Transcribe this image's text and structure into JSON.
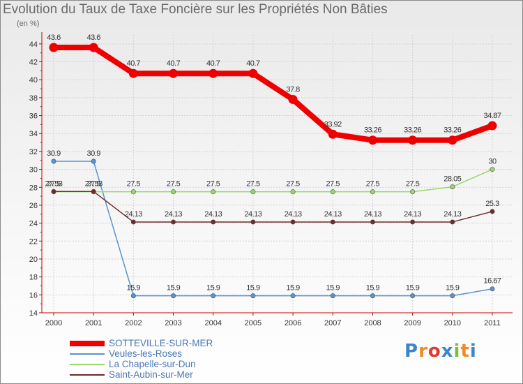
{
  "page": {
    "title": "Evolution du Taux de Taxe Foncière sur les Propriétés Non Bâties",
    "unit": "(en %)",
    "brand": [
      "P",
      "r",
      "o",
      "x",
      "i",
      "t",
      "i"
    ],
    "brand_colors": [
      "#3a86c8",
      "#f08a24",
      "#e23a2a",
      "#3a86c8",
      "#7bbf3a",
      "#f08a24",
      "#3a86c8"
    ]
  },
  "chart_data": {
    "type": "line",
    "title": "Evolution du Taux de Taxe Foncière sur les Propriétés Non Bâties",
    "ylabel": "(en %)",
    "xlabel": "",
    "ylim": [
      14,
      45
    ],
    "yticks": [
      14,
      16,
      18,
      20,
      22,
      24,
      26,
      28,
      30,
      32,
      34,
      36,
      38,
      40,
      42,
      44
    ],
    "x": [
      "2000",
      "2001",
      "2002",
      "2003",
      "2004",
      "2005",
      "2006",
      "2007",
      "2008",
      "2009",
      "2010",
      "2011"
    ],
    "grid": true,
    "series": [
      {
        "name": "SOTTEVILLE-SUR-MER",
        "color": "#ee0000",
        "emphasis": true,
        "values": [
          43.6,
          43.6,
          40.7,
          40.7,
          40.7,
          40.7,
          37.8,
          33.92,
          33.26,
          33.26,
          33.26,
          34.87
        ],
        "labels": [
          "43.6",
          "43.6",
          "40.7",
          "40.7",
          "40.7",
          "40.7",
          "37.8",
          "33.92",
          "33.26",
          "33.26",
          "33.26",
          "34.87"
        ]
      },
      {
        "name": "Veules-les-Roses",
        "color": "#5b93cf",
        "emphasis": false,
        "values": [
          30.9,
          30.9,
          15.9,
          15.9,
          15.9,
          15.9,
          15.9,
          15.9,
          15.9,
          15.9,
          15.9,
          16.67
        ],
        "labels": [
          "30.9",
          "30.9",
          "15.9",
          "15.9",
          "15.9",
          "15.9",
          "15.9",
          "15.9",
          "15.9",
          "15.9",
          "15.9",
          "16.67"
        ]
      },
      {
        "name": "La Chapelle-sur-Dun",
        "color": "#9ad66a",
        "emphasis": false,
        "values": [
          27.5,
          27.5,
          27.5,
          27.5,
          27.5,
          27.5,
          27.5,
          27.5,
          27.5,
          27.5,
          28.05,
          30
        ],
        "labels": [
          "27.5",
          "27.5",
          "27.5",
          "27.5",
          "27.5",
          "27.5",
          "27.5",
          "27.5",
          "27.5",
          "27.5",
          "28.05",
          "30"
        ]
      },
      {
        "name": "Saint-Aubin-sur-Mer",
        "color": "#6e2a2a",
        "emphasis": false,
        "values": [
          27.53,
          27.53,
          24.13,
          24.13,
          24.13,
          24.13,
          24.13,
          24.13,
          24.13,
          24.13,
          24.13,
          25.3
        ],
        "labels": [
          "27.53",
          "27.53",
          "24.13",
          "24.13",
          "24.13",
          "24.13",
          "24.13",
          "24.13",
          "24.13",
          "24.13",
          "24.13",
          "25.3"
        ]
      }
    ]
  }
}
